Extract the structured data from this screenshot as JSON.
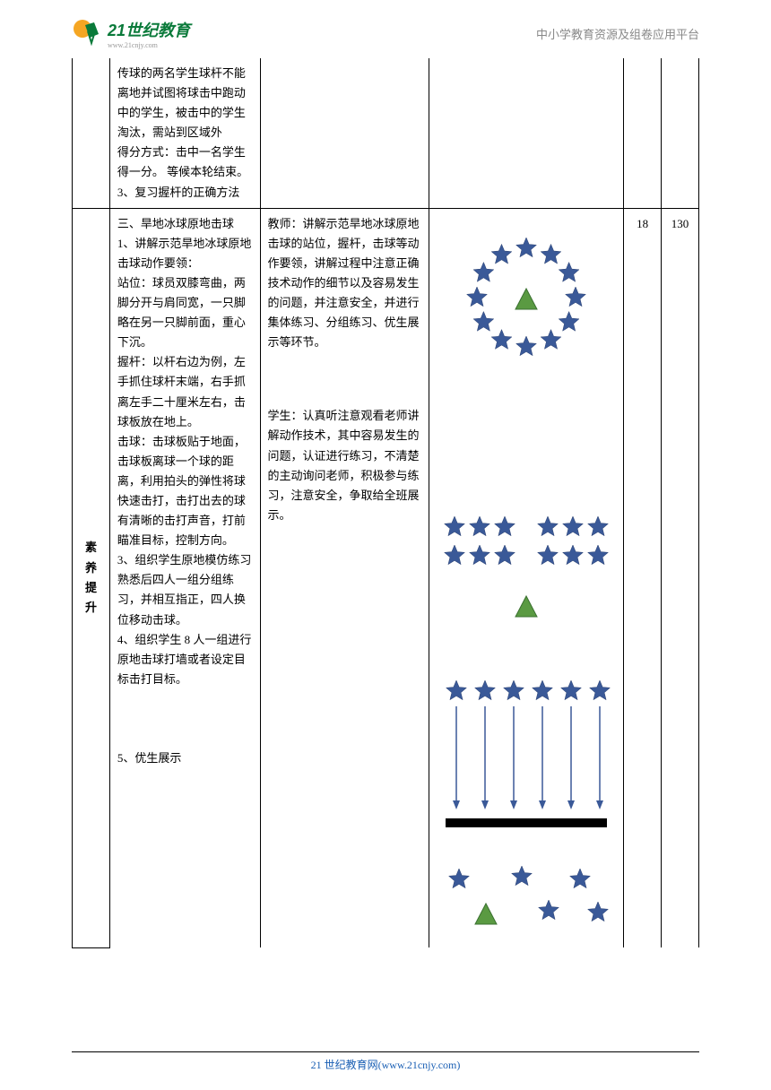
{
  "header": {
    "logo_main": "21世纪教育",
    "logo_sub": "www.21cnjy.com",
    "right_text": "中小学教育资源及组卷应用平台"
  },
  "footer": {
    "text": "21 世纪教育网(www.21cnjy.com)"
  },
  "row1": {
    "col2_text": "传球的两名学生球杆不能离地并试图将球击中跑动中的学生，被击中的学生淘汰，需站到区域外\n得分方式：击中一名学生得一分。 等候本轮结束。\n3、复习握杆的正确方法",
    "col5": "",
    "col6": ""
  },
  "row2": {
    "col1": "素养提升",
    "col2_text": "三、旱地冰球原地击球\n1、讲解示范旱地冰球原地击球动作要领：\n站位：球员双膝弯曲，两脚分开与肩同宽，一只脚略在另一只脚前面，重心下沉。\n握杆：以杆右边为例，左手抓住球杆末端，右手抓离左手二十厘米左右，击球板放在地上。\n击球：击球板贴于地面，击球板离球一个球的距离，利用拍头的弹性将球快速击打，击打出去的球有清晰的击打声音，打前瞄准目标，控制方向。\n3、组织学生原地模仿练习熟悉后四人一组分组练习，并相互指正，四人换位移动击球。\n4、组织学生 8 人一组进行原地击球打墙或者设定目标击打目标。\n\n\n\n5、优生展示",
    "col3_text1": "教师：讲解示范旱地冰球原地击球的站位，握杆，击球等动作要领，讲解过程中注意正确技术动作的细节以及容易发生的问题，并注意安全，并进行集体练习、分组练习、优生展示等环节。",
    "col3_text2": "学生：认真听注意观看老师讲解动作技术，其中容易发生的问题，认证进行练习，不清楚的主动询问老师，积极参与练习，注意安全，争取给全班展示。",
    "col5": "18",
    "col6": "130"
  },
  "diagrams": {
    "star_color": "#3a5998",
    "triangle_color": "#5a9a42",
    "arrow_color": "#3a5998",
    "bar_color": "#000000"
  }
}
